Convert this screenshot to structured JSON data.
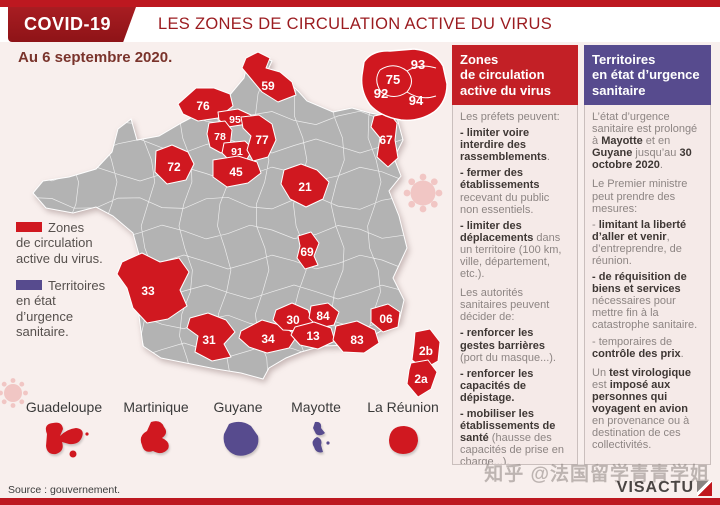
{
  "header": {
    "badge": "COVID-19",
    "title": "LES ZONES DE CIRCULATION ACTIVE DU VIRUS"
  },
  "date_label": "Au 6 septembre 2020.",
  "colors": {
    "zone_red": "#d01820",
    "urgence_purple": "#574b8e",
    "dark_red_title": "#9b1c20",
    "frame_bar_red": "#bd1820",
    "map_gray": "#b3b3b3"
  },
  "legend": {
    "items": [
      {
        "label": "Zones\nde circulation\nactive du virus.",
        "color": "#d01820"
      },
      {
        "label": "Territoires\nen état\nd’urgence\nsanitaire.",
        "color": "#574b8e"
      }
    ]
  },
  "map": {
    "departments": [
      {
        "code": "59"
      },
      {
        "code": "76"
      },
      {
        "code": "95"
      },
      {
        "code": "78"
      },
      {
        "code": "91"
      },
      {
        "code": "77"
      },
      {
        "code": "45"
      },
      {
        "code": "72"
      },
      {
        "code": "21"
      },
      {
        "code": "67"
      },
      {
        "code": "69"
      },
      {
        "code": "33"
      },
      {
        "code": "31"
      },
      {
        "code": "34"
      },
      {
        "code": "30"
      },
      {
        "code": "84"
      },
      {
        "code": "13"
      },
      {
        "code": "83"
      },
      {
        "code": "06"
      },
      {
        "code": "2b"
      },
      {
        "code": "2a"
      }
    ],
    "inset_departments": [
      {
        "code": "93"
      },
      {
        "code": "75"
      },
      {
        "code": "92"
      },
      {
        "code": "94"
      }
    ]
  },
  "territories": [
    {
      "name": "Guadeloupe",
      "color": "#d01820"
    },
    {
      "name": "Martinique",
      "color": "#d01820"
    },
    {
      "name": "Guyane",
      "color": "#574b8e"
    },
    {
      "name": "Mayotte",
      "color": "#574b8e"
    },
    {
      "name": "La Réunion",
      "color": "#d01820"
    }
  ],
  "columns": [
    {
      "title": "Zones\nde circulation\nactive du virus",
      "header_color": "#c32026",
      "gap_before": [
        4
      ],
      "paragraphs": [
        [
          {
            "t": "Les préfets peuvent:"
          }
        ],
        [
          {
            "t": "- limiter voire interdire des rassemblements",
            "b": true
          },
          {
            "t": "."
          }
        ],
        [
          {
            "t": "- fermer des établissements",
            "b": true
          },
          {
            "t": " recevant du public non essentiels."
          }
        ],
        [
          {
            "t": "- limiter des déplacements",
            "b": true
          },
          {
            "t": " dans un territoire (100 km, ville, département, etc.)."
          }
        ],
        [
          {
            "t": "Les autorités sanitaires peuvent décider de:"
          }
        ],
        [
          {
            "t": "- renforcer les gestes barrières",
            "b": true
          },
          {
            "t": " (port du masque...)."
          }
        ],
        [
          {
            "t": "- renforcer les capacités de dépistage.",
            "b": true
          }
        ],
        [
          {
            "t": "- mobiliser les établissements de santé",
            "b": true
          },
          {
            "t": " (hausse des capacités de prise en charge...)."
          }
        ]
      ]
    },
    {
      "title": "Territoires\nen état d’urgence\nsanitaire",
      "header_color": "#574b8e",
      "gap_before": [
        1,
        5
      ],
      "paragraphs": [
        [
          {
            "t": "L’état d’urgence sanitaire est prolongé à "
          },
          {
            "t": "Mayotte",
            "b": true
          },
          {
            "t": " et en "
          },
          {
            "t": "Guyane",
            "b": true
          },
          {
            "t": " jusqu’au "
          },
          {
            "t": "30 octobre 2020",
            "b": true
          },
          {
            "t": "."
          }
        ],
        [
          {
            "t": "Le Premier ministre peut prendre des mesures:"
          }
        ],
        [
          {
            "t": "- "
          },
          {
            "t": "limitant la liberté d’aller et venir",
            "b": true
          },
          {
            "t": ", d’entreprendre, de réunion."
          }
        ],
        [
          {
            "t": "- de réquisition de biens et services",
            "b": true
          },
          {
            "t": " nécessaires pour mettre fin à la catastrophe sanitaire."
          }
        ],
        [
          {
            "t": "- temporaires de "
          },
          {
            "t": "contrôle des prix",
            "b": true
          },
          {
            "t": "."
          }
        ],
        [
          {
            "t": "Un "
          },
          {
            "t": "test virologique",
            "b": true
          },
          {
            "t": " est "
          },
          {
            "t": "imposé aux personnes qui voyagent en avion",
            "b": true
          },
          {
            "t": " en provenance ou à destination de ces collectivités."
          }
        ]
      ]
    }
  ],
  "footer": {
    "source": "Source : gouvernement.",
    "watermark": "知乎 @法国留学青青学姐",
    "logo": "VISACTU"
  }
}
